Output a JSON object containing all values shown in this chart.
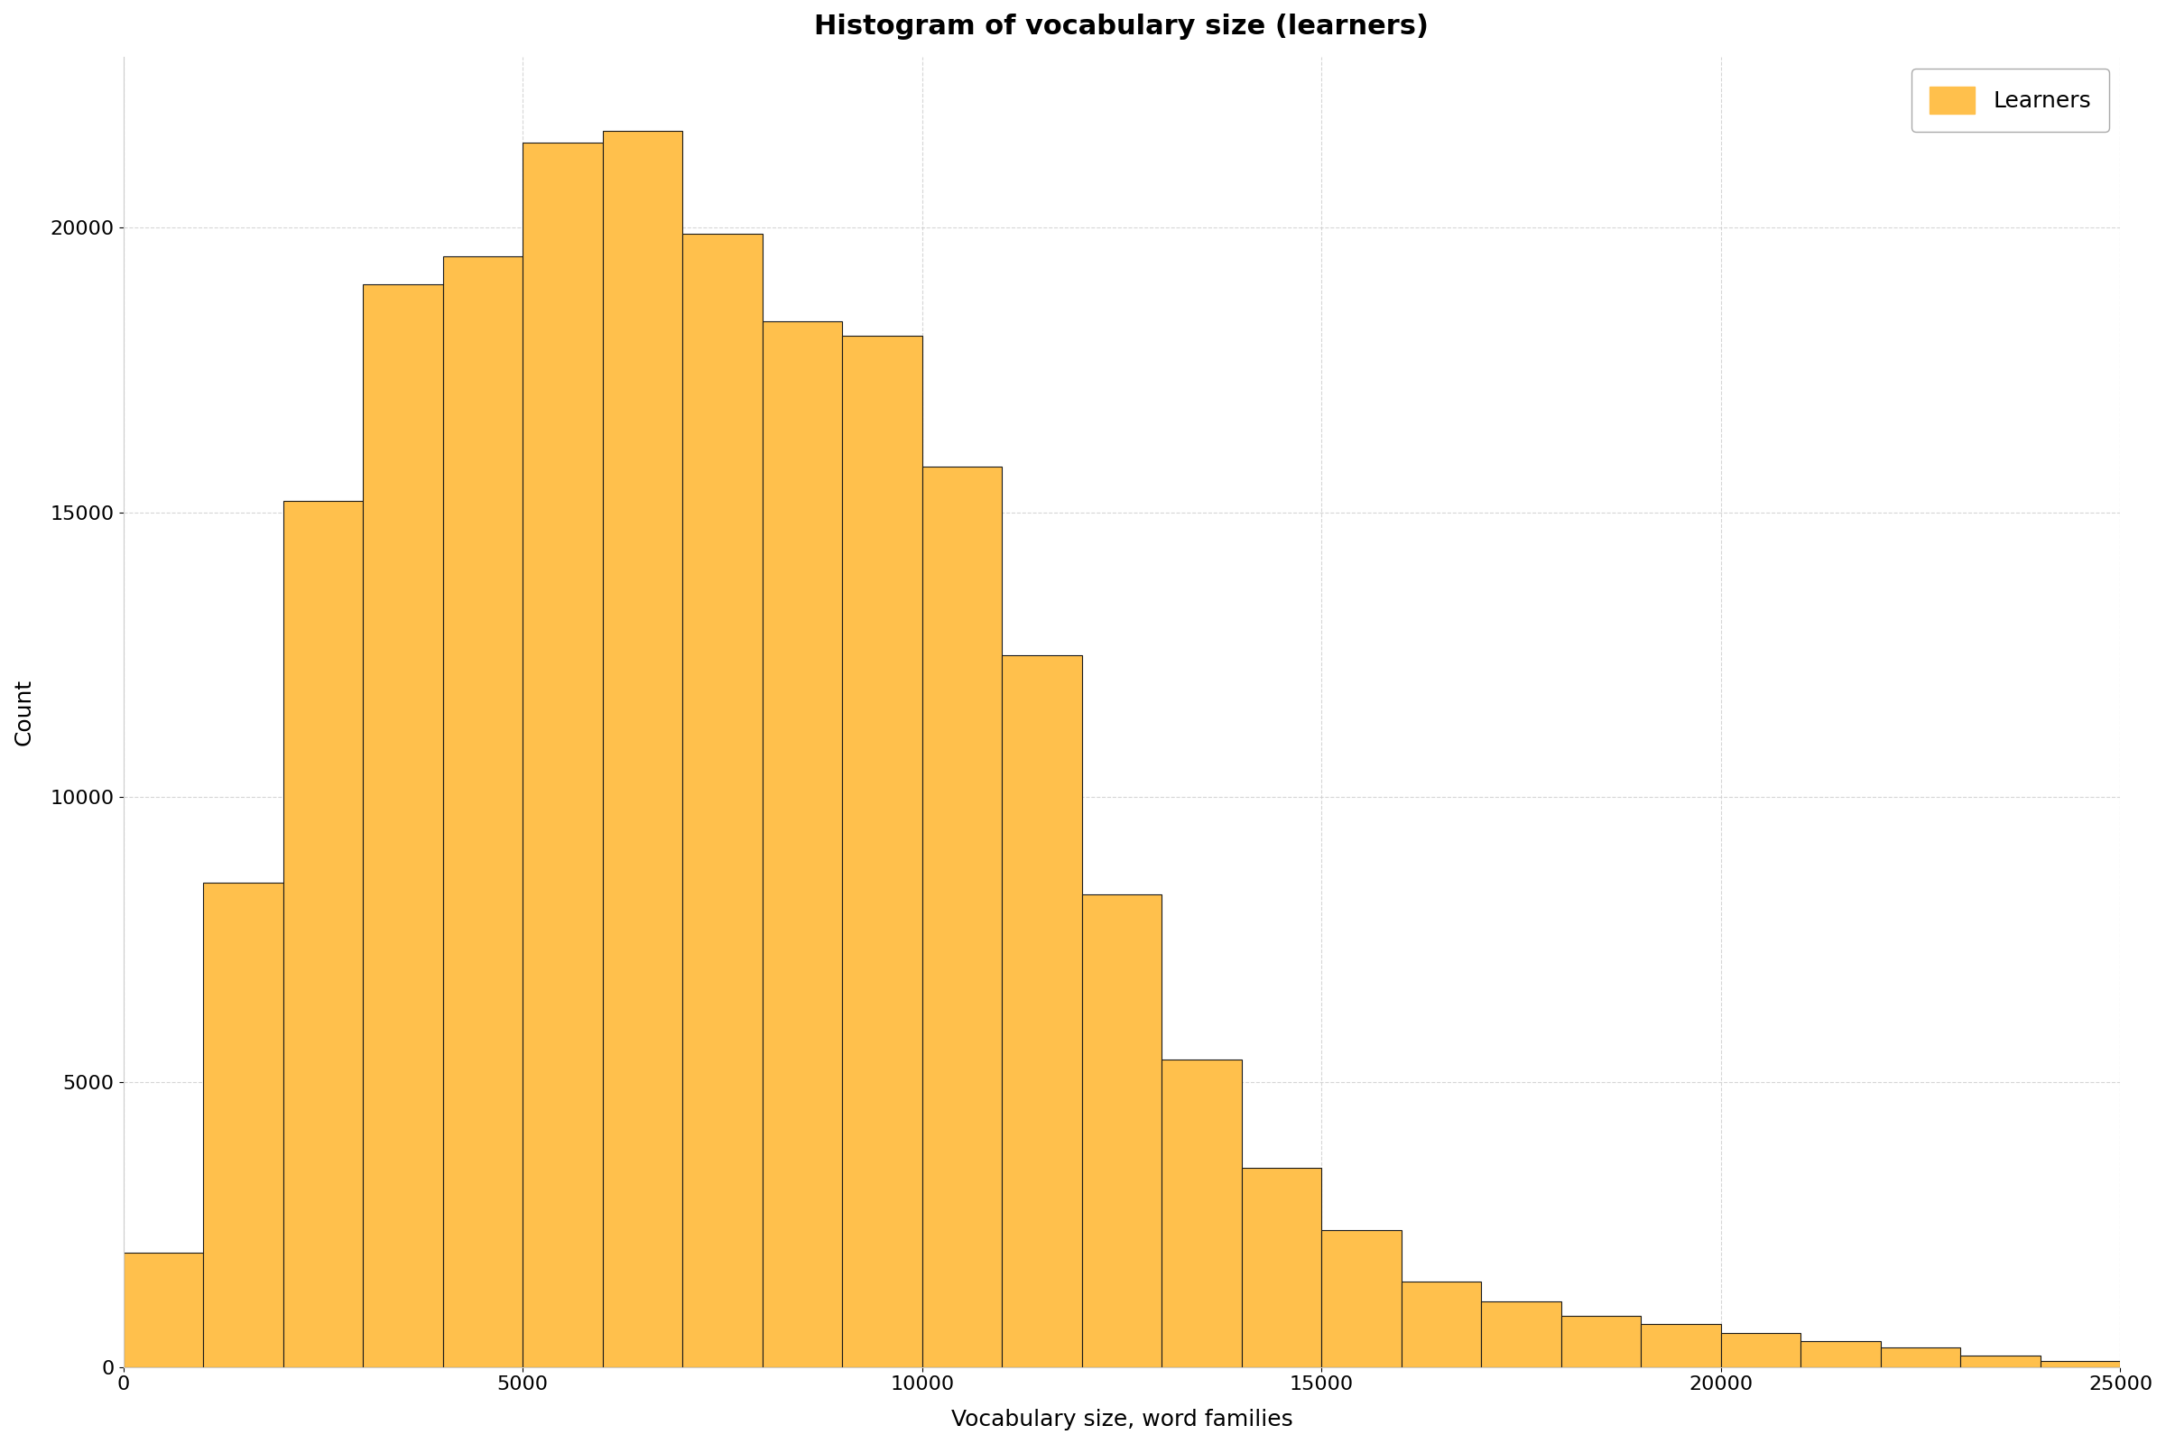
{
  "title": "Histogram of vocabulary size (learners)",
  "xlabel": "Vocabulary size, word families",
  "ylabel": "Count",
  "bar_color": "#FFC04C",
  "edge_color": "#1a1a1a",
  "background_color": "#ffffff",
  "legend_label": "Learners",
  "bin_width": 1000,
  "xlim": [
    0,
    25000
  ],
  "ylim": [
    0,
    23000
  ],
  "yticks": [
    0,
    5000,
    10000,
    15000,
    20000
  ],
  "xticks": [
    0,
    5000,
    10000,
    15000,
    20000,
    25000
  ],
  "bar_lefts": [
    0,
    1000,
    2000,
    3000,
    4000,
    5000,
    6000,
    7000,
    8000,
    9000,
    10000,
    11000,
    12000,
    13000,
    14000,
    15000,
    16000,
    17000,
    18000,
    19000,
    20000,
    21000,
    22000,
    23000,
    24000
  ],
  "bar_heights": [
    2000,
    8500,
    15200,
    19000,
    19500,
    21500,
    21700,
    19900,
    18350,
    18100,
    15800,
    12500,
    8300,
    5400,
    3500,
    2400,
    1500,
    1150,
    900,
    750,
    600,
    450,
    350,
    200,
    100
  ]
}
